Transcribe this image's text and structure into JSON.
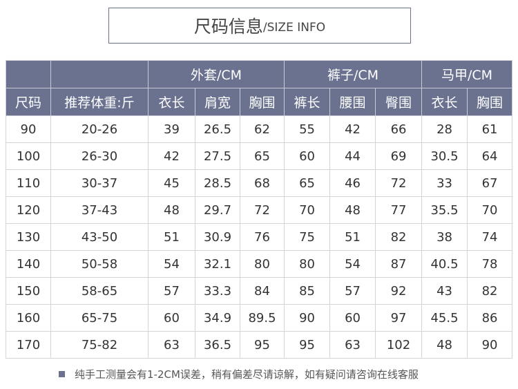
{
  "title": {
    "cn": "尺码信息",
    "en": "/SIZE INFO"
  },
  "accent_color": "#6a7290",
  "groups": [
    "外套/CM",
    "裤子/CM",
    "马甲/CM"
  ],
  "columns": [
    "尺码",
    "推荐体重:斤",
    "衣长",
    "肩宽",
    "胸围",
    "裤长",
    "腰围",
    "臀围",
    "衣长",
    "胸围"
  ],
  "rows": [
    [
      "90",
      "20-26",
      "39",
      "26.5",
      "62",
      "55",
      "42",
      "66",
      "28",
      "61"
    ],
    [
      "100",
      "26-30",
      "42",
      "27.5",
      "65",
      "60",
      "44",
      "69",
      "30.5",
      "64"
    ],
    [
      "110",
      "30-37",
      "45",
      "28.5",
      "68",
      "65",
      "46",
      "72",
      "33",
      "67"
    ],
    [
      "120",
      "37-43",
      "48",
      "29.7",
      "72",
      "70",
      "48",
      "77",
      "35.5",
      "70"
    ],
    [
      "130",
      "43-50",
      "51",
      "30.9",
      "76",
      "75",
      "51",
      "82",
      "38",
      "74"
    ],
    [
      "140",
      "50-58",
      "54",
      "32.1",
      "80",
      "80",
      "54",
      "87",
      "40.5",
      "78"
    ],
    [
      "150",
      "58-65",
      "57",
      "33.3",
      "84",
      "85",
      "57",
      "92",
      "43",
      "82"
    ],
    [
      "160",
      "65-75",
      "60",
      "34.9",
      "89.5",
      "90",
      "60",
      "97",
      "45.5",
      "86"
    ],
    [
      "170",
      "75-82",
      "63",
      "36.5",
      "95",
      "95",
      "63",
      "102",
      "48",
      "90"
    ]
  ],
  "footer_note": "纯手工测量会有1-2CM误差，稍有偏差尽请谅解，如有疑问请咨询在线客服"
}
